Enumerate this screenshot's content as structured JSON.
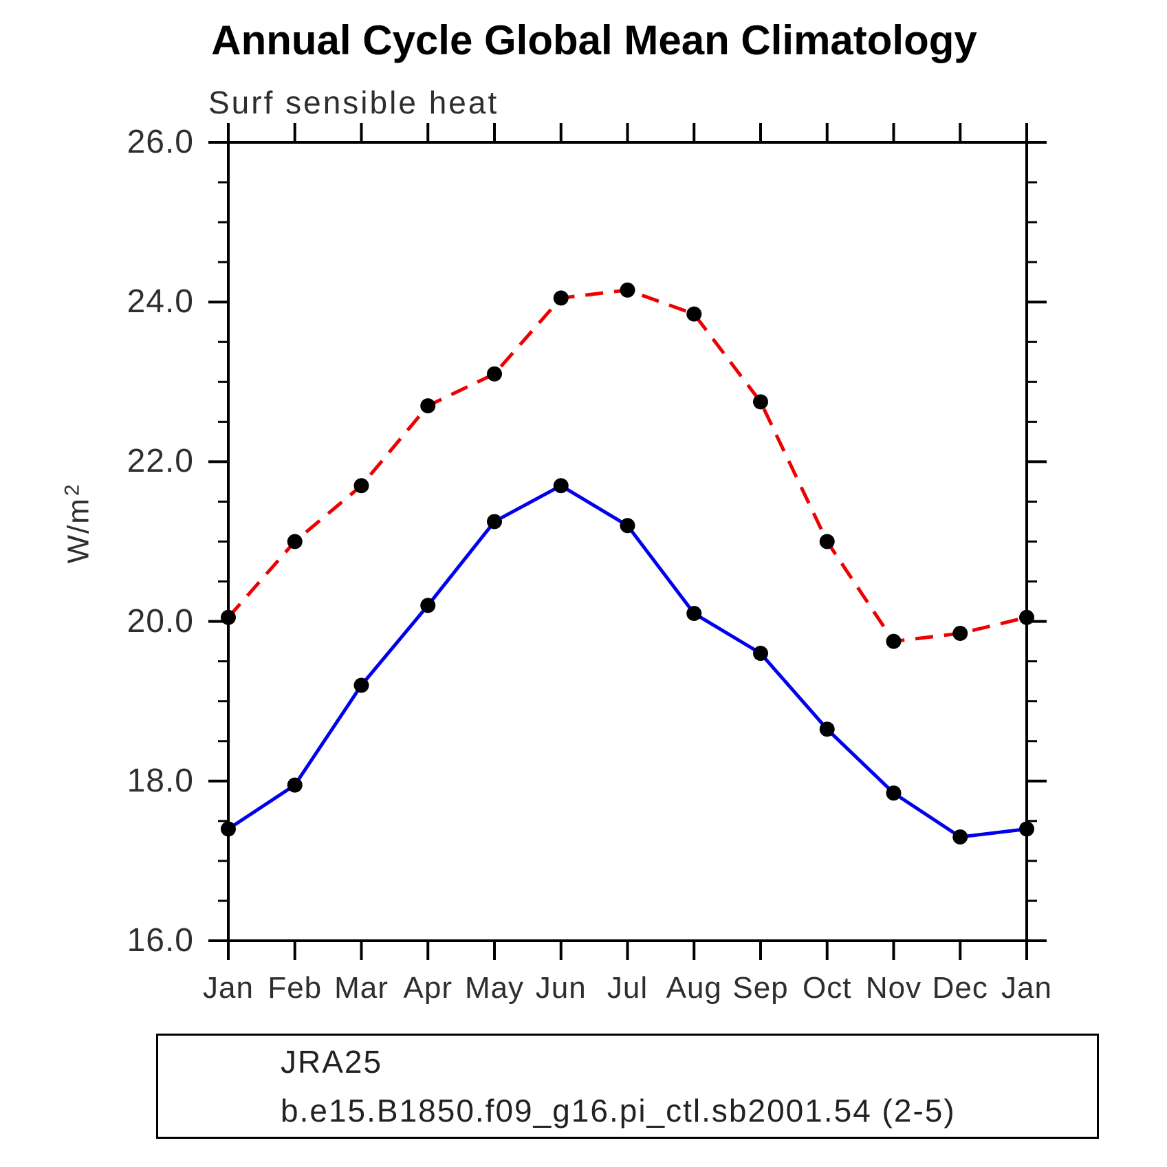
{
  "title": "Annual Cycle Global Mean Climatology",
  "subtitle": "Surf sensible heat",
  "y_axis": {
    "label_base": "W/m",
    "label_exponent": "2",
    "tick_labels": [
      "16.0",
      "18.0",
      "20.0",
      "22.0",
      "24.0",
      "26.0"
    ]
  },
  "chart_data": {
    "type": "line",
    "categories": [
      "Jan",
      "Feb",
      "Mar",
      "Apr",
      "May",
      "Jun",
      "Jul",
      "Aug",
      "Sep",
      "Oct",
      "Nov",
      "Dec",
      "Jan"
    ],
    "series": [
      {
        "name": "JRA25",
        "color": "#0000ee",
        "line_style": "solid",
        "values": [
          17.4,
          17.95,
          19.2,
          20.2,
          21.25,
          21.7,
          21.2,
          20.1,
          19.6,
          18.65,
          17.85,
          17.3,
          17.4
        ]
      },
      {
        "name": "b.e15.B1850.f09_g16.pi_ctl.sb2001.54 (2-5)",
        "color": "#ee0000",
        "line_style": "dashed",
        "values": [
          20.05,
          21.0,
          21.7,
          22.7,
          23.1,
          24.05,
          24.15,
          23.85,
          22.75,
          21.0,
          19.75,
          19.85,
          20.05
        ]
      }
    ],
    "ylim": [
      16.0,
      26.0
    ],
    "ytick_step": 2.0,
    "yminor_step": 0.5,
    "marker_color": "#000000",
    "axis_color": "#000000",
    "grid": "off",
    "legend_position": "bottom"
  }
}
